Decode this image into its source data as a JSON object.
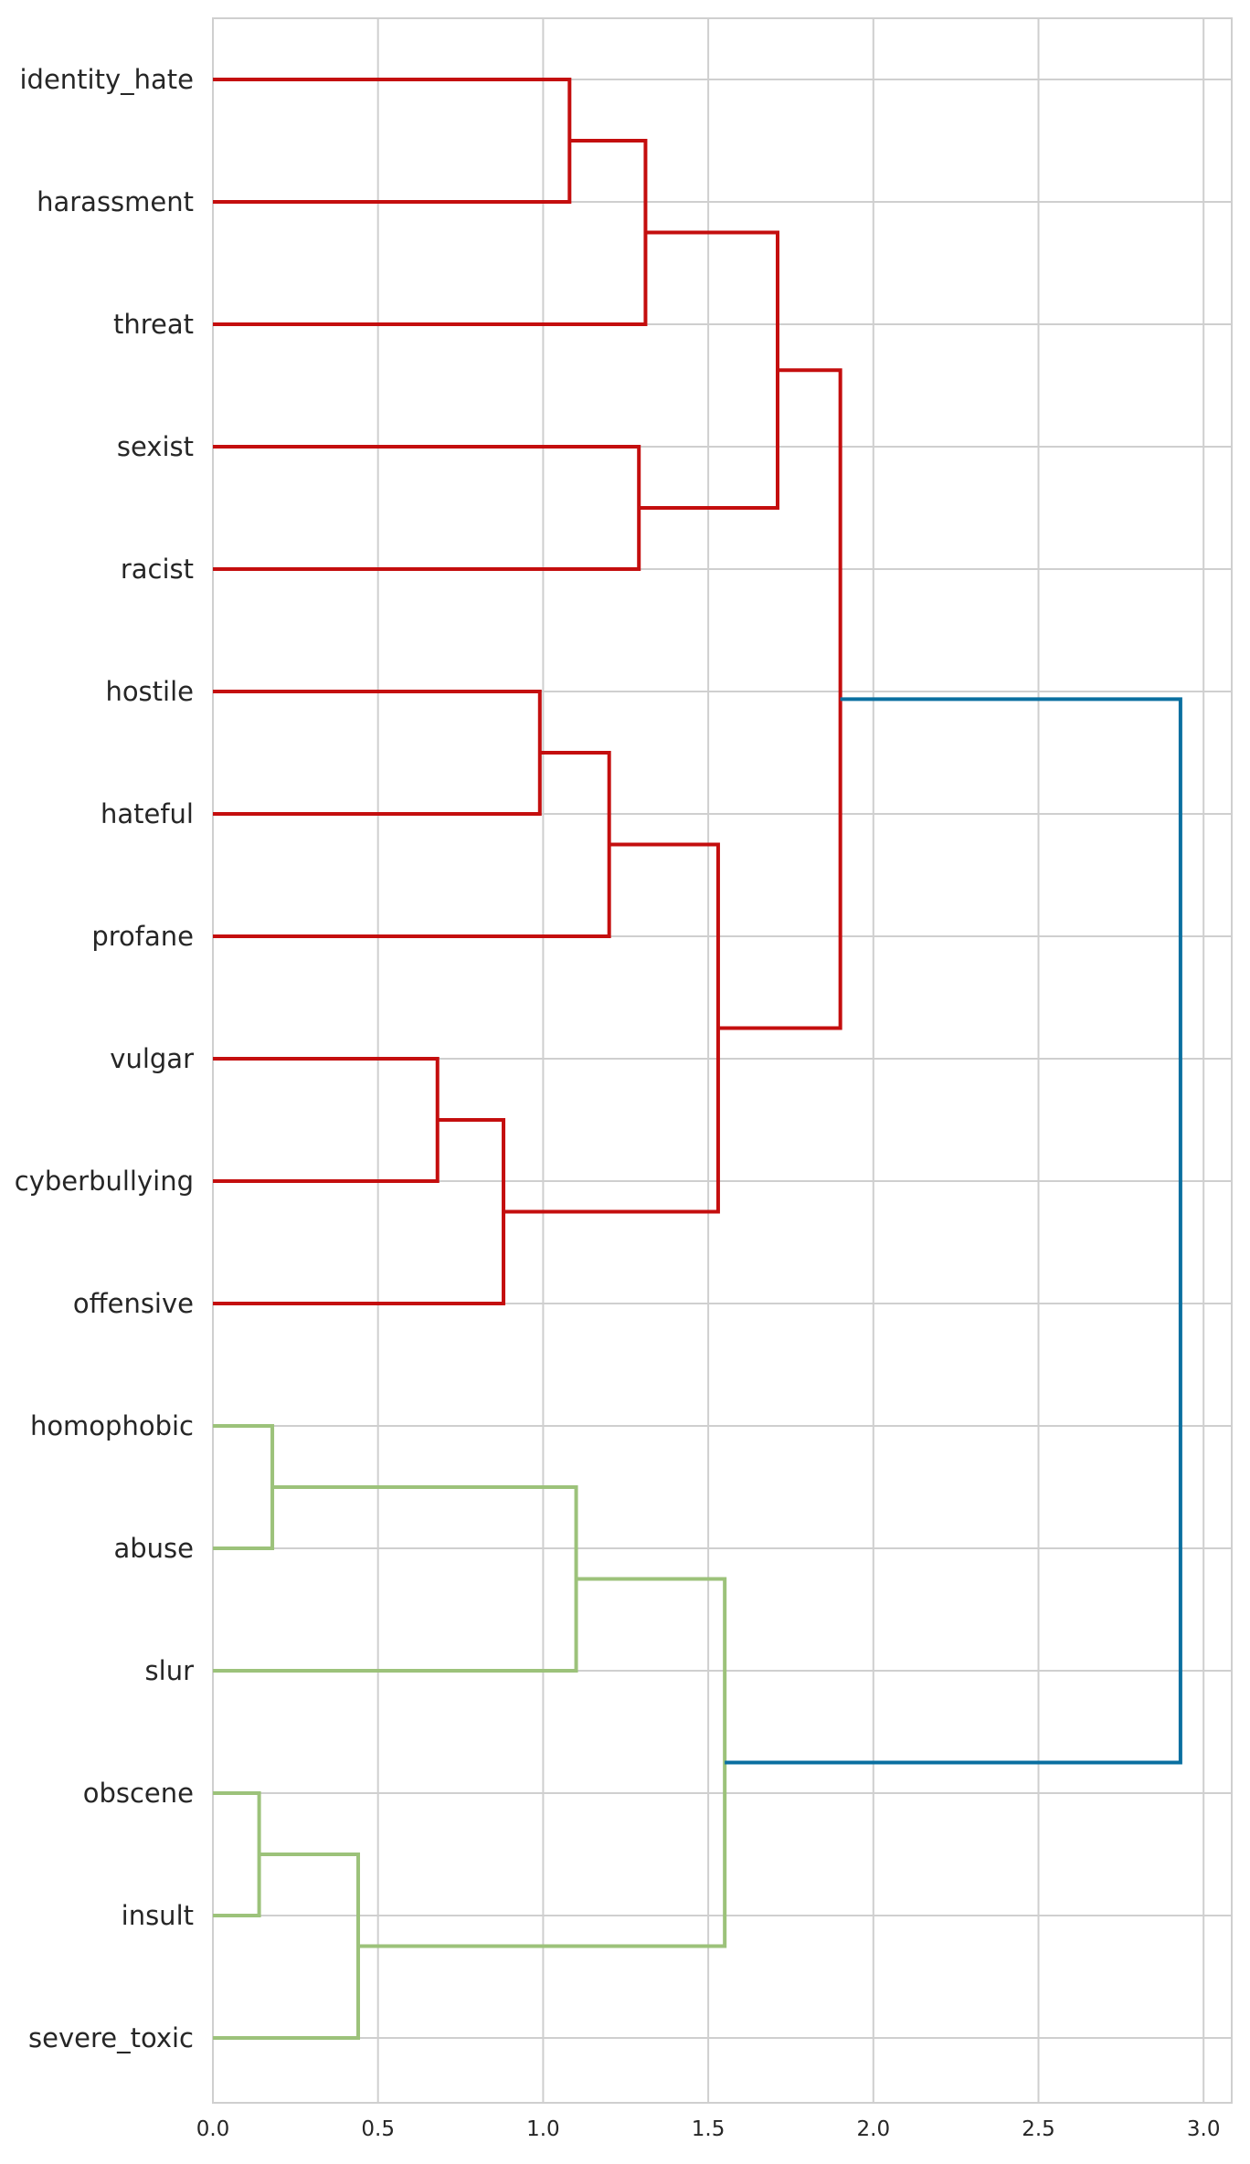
{
  "chart_data": {
    "type": "dendrogram",
    "orientation": "horizontal",
    "leaves": [
      "identity_hate",
      "harassment",
      "threat",
      "sexist",
      "racist",
      "hostile",
      "hateful",
      "profane",
      "vulgar",
      "cyberbullying",
      "offensive",
      "homophobic",
      "abuse",
      "slur",
      "obscene",
      "insult",
      "severe_toxic"
    ],
    "merges": [
      {
        "left": 0,
        "right": 1,
        "height": 1.08,
        "cluster": "red"
      },
      {
        "left": 17,
        "right": 2,
        "height": 1.31,
        "cluster": "red"
      },
      {
        "left": 3,
        "right": 4,
        "height": 1.29,
        "cluster": "red"
      },
      {
        "left": 18,
        "right": 19,
        "height": 1.71,
        "cluster": "red"
      },
      {
        "left": 5,
        "right": 6,
        "height": 0.99,
        "cluster": "red"
      },
      {
        "left": 21,
        "right": 7,
        "height": 1.2,
        "cluster": "red"
      },
      {
        "left": 8,
        "right": 9,
        "height": 0.68,
        "cluster": "red"
      },
      {
        "left": 23,
        "right": 10,
        "height": 0.88,
        "cluster": "red"
      },
      {
        "left": 22,
        "right": 24,
        "height": 1.53,
        "cluster": "red"
      },
      {
        "left": 20,
        "right": 25,
        "height": 1.9,
        "cluster": "red"
      },
      {
        "left": 11,
        "right": 12,
        "height": 0.18,
        "cluster": "green"
      },
      {
        "left": 27,
        "right": 13,
        "height": 1.1,
        "cluster": "green"
      },
      {
        "left": 14,
        "right": 15,
        "height": 0.14,
        "cluster": "green"
      },
      {
        "left": 29,
        "right": 16,
        "height": 0.44,
        "cluster": "green"
      },
      {
        "left": 28,
        "right": 30,
        "height": 1.55,
        "cluster": "green"
      },
      {
        "left": 26,
        "right": 31,
        "height": 2.93,
        "cluster": "blue"
      }
    ],
    "x_ticks": [
      0.0,
      0.5,
      1.0,
      1.5,
      2.0,
      2.5,
      3.0
    ],
    "x_tick_labels": [
      "0.0",
      "0.5",
      "1.0",
      "1.5",
      "2.0",
      "2.5",
      "3.0"
    ],
    "xlim": [
      0,
      3.08
    ],
    "grid": true,
    "title": "",
    "xlabel": "",
    "ylabel": "",
    "colors": {
      "red": "#c40e0e",
      "green": "#9cc27a",
      "blue": "#0a6fa0",
      "grid": "#cfcfcf",
      "text": "#262626"
    }
  }
}
